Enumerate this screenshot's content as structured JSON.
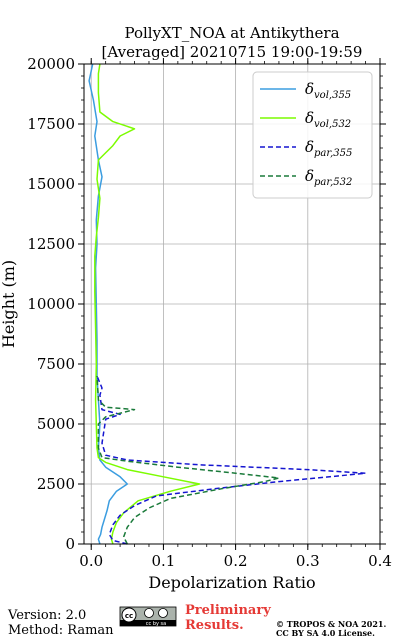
{
  "header": {
    "line1": "PollyXT_NOA at Antikythera",
    "line2": "[Averaged] 20210715 19:00-19:59"
  },
  "footer": {
    "version": "Version: 2.0",
    "method": "Method: Raman",
    "license_badge": "cc by sa",
    "prelim_line1": "Preliminary",
    "prelim_line2": "Results.",
    "copyright_line1": "© TROPOS & NOA 2021.",
    "copyright_line2": "CC BY SA 4.0 License."
  },
  "chart_data": {
    "type": "line",
    "title": "PollyXT_NOA at Antikythera [Averaged] 20210715 19:00-19:59",
    "xlabel": "Depolarization Ratio",
    "ylabel": "Height (m)",
    "xlim": [
      -0.01,
      0.4
    ],
    "ylim": [
      0,
      20000
    ],
    "xticks": [
      0.0,
      0.1,
      0.2,
      0.3,
      0.4
    ],
    "xtick_labels": [
      "0.0",
      "0.1",
      "0.2",
      "0.3",
      "0.4"
    ],
    "yticks": [
      0,
      2500,
      5000,
      7500,
      10000,
      12500,
      15000,
      17500,
      20000
    ],
    "ytick_labels": [
      "0",
      "2500",
      "5000",
      "7500",
      "10000",
      "12500",
      "15000",
      "17500",
      "20000"
    ],
    "grid": true,
    "legend_position": "top-right",
    "series": [
      {
        "name": "δvol,355",
        "legend_main": "δ",
        "legend_sub": "vol,355",
        "color": "#3b9de0",
        "style": "solid",
        "points": [
          [
            0.012,
            0
          ],
          [
            0.01,
            200
          ],
          [
            0.013,
            400
          ],
          [
            0.015,
            700
          ],
          [
            0.018,
            1000
          ],
          [
            0.022,
            1400
          ],
          [
            0.025,
            1800
          ],
          [
            0.035,
            2200
          ],
          [
            0.05,
            2500
          ],
          [
            0.04,
            2800
          ],
          [
            0.02,
            3200
          ],
          [
            0.012,
            3500
          ],
          [
            0.01,
            4000
          ],
          [
            0.012,
            5000
          ],
          [
            0.01,
            6000
          ],
          [
            0.008,
            7000
          ],
          [
            0.008,
            8500
          ],
          [
            0.007,
            10000
          ],
          [
            0.006,
            11500
          ],
          [
            0.008,
            12500
          ],
          [
            0.007,
            13500
          ],
          [
            0.01,
            14500
          ],
          [
            0.015,
            15300
          ],
          [
            0.01,
            16000
          ],
          [
            0.005,
            17000
          ],
          [
            0.008,
            17600
          ],
          [
            0.003,
            18500
          ],
          [
            -0.003,
            19300
          ],
          [
            0.002,
            20000
          ]
        ]
      },
      {
        "name": "δvol,532",
        "legend_main": "δ",
        "legend_sub": "vol,532",
        "color": "#7cfc00",
        "style": "solid",
        "points": [
          [
            0.03,
            0
          ],
          [
            0.028,
            200
          ],
          [
            0.03,
            500
          ],
          [
            0.035,
            900
          ],
          [
            0.045,
            1300
          ],
          [
            0.065,
            1800
          ],
          [
            0.11,
            2200
          ],
          [
            0.15,
            2500
          ],
          [
            0.1,
            2800
          ],
          [
            0.05,
            3100
          ],
          [
            0.02,
            3400
          ],
          [
            0.01,
            3600
          ],
          [
            0.008,
            4000
          ],
          [
            0.007,
            5000
          ],
          [
            0.006,
            6000
          ],
          [
            0.007,
            7500
          ],
          [
            0.006,
            9000
          ],
          [
            0.005,
            10500
          ],
          [
            0.005,
            12000
          ],
          [
            0.007,
            12800
          ],
          [
            0.01,
            13600
          ],
          [
            0.012,
            14400
          ],
          [
            0.008,
            15200
          ],
          [
            0.01,
            16000
          ],
          [
            0.03,
            16600
          ],
          [
            0.04,
            17000
          ],
          [
            0.06,
            17300
          ],
          [
            0.03,
            17600
          ],
          [
            0.012,
            18000
          ],
          [
            0.01,
            18800
          ],
          [
            0.01,
            19600
          ],
          [
            0.012,
            20000
          ]
        ]
      },
      {
        "name": "δpar,355",
        "legend_main": "δ",
        "legend_sub": "par,355",
        "color": "#1515d0",
        "style": "dashed",
        "points": [
          [
            0.05,
            0
          ],
          [
            0.03,
            150
          ],
          [
            0.025,
            400
          ],
          [
            0.03,
            800
          ],
          [
            0.04,
            1200
          ],
          [
            0.06,
            1600
          ],
          [
            0.09,
            2000
          ],
          [
            0.17,
            2300
          ],
          [
            0.26,
            2600
          ],
          [
            0.33,
            2800
          ],
          [
            0.38,
            2950
          ],
          [
            0.3,
            3100
          ],
          [
            0.15,
            3300
          ],
          [
            0.05,
            3500
          ],
          [
            0.02,
            3700
          ],
          [
            0.015,
            4200
          ],
          [
            0.02,
            5200
          ],
          [
            0.04,
            5400
          ],
          [
            0.015,
            5600
          ],
          [
            0.012,
            6200
          ],
          [
            0.015,
            6500
          ],
          [
            0.008,
            7000
          ]
        ]
      },
      {
        "name": "δpar,532",
        "legend_main": "δ",
        "legend_sub": "par,532",
        "color": "#1a7a3a",
        "style": "dashed",
        "points": [
          [
            0.05,
            0
          ],
          [
            0.045,
            300
          ],
          [
            0.05,
            700
          ],
          [
            0.06,
            1100
          ],
          [
            0.08,
            1500
          ],
          [
            0.11,
            1900
          ],
          [
            0.18,
            2300
          ],
          [
            0.24,
            2600
          ],
          [
            0.26,
            2750
          ],
          [
            0.2,
            2950
          ],
          [
            0.12,
            3200
          ],
          [
            0.05,
            3450
          ],
          [
            0.015,
            3600
          ],
          [
            0.01,
            4000
          ],
          [
            0.01,
            5000
          ],
          [
            0.02,
            5300
          ],
          [
            0.06,
            5600
          ],
          [
            0.02,
            5700
          ],
          [
            0.01,
            6000
          ],
          [
            0.008,
            7000
          ]
        ]
      }
    ]
  }
}
